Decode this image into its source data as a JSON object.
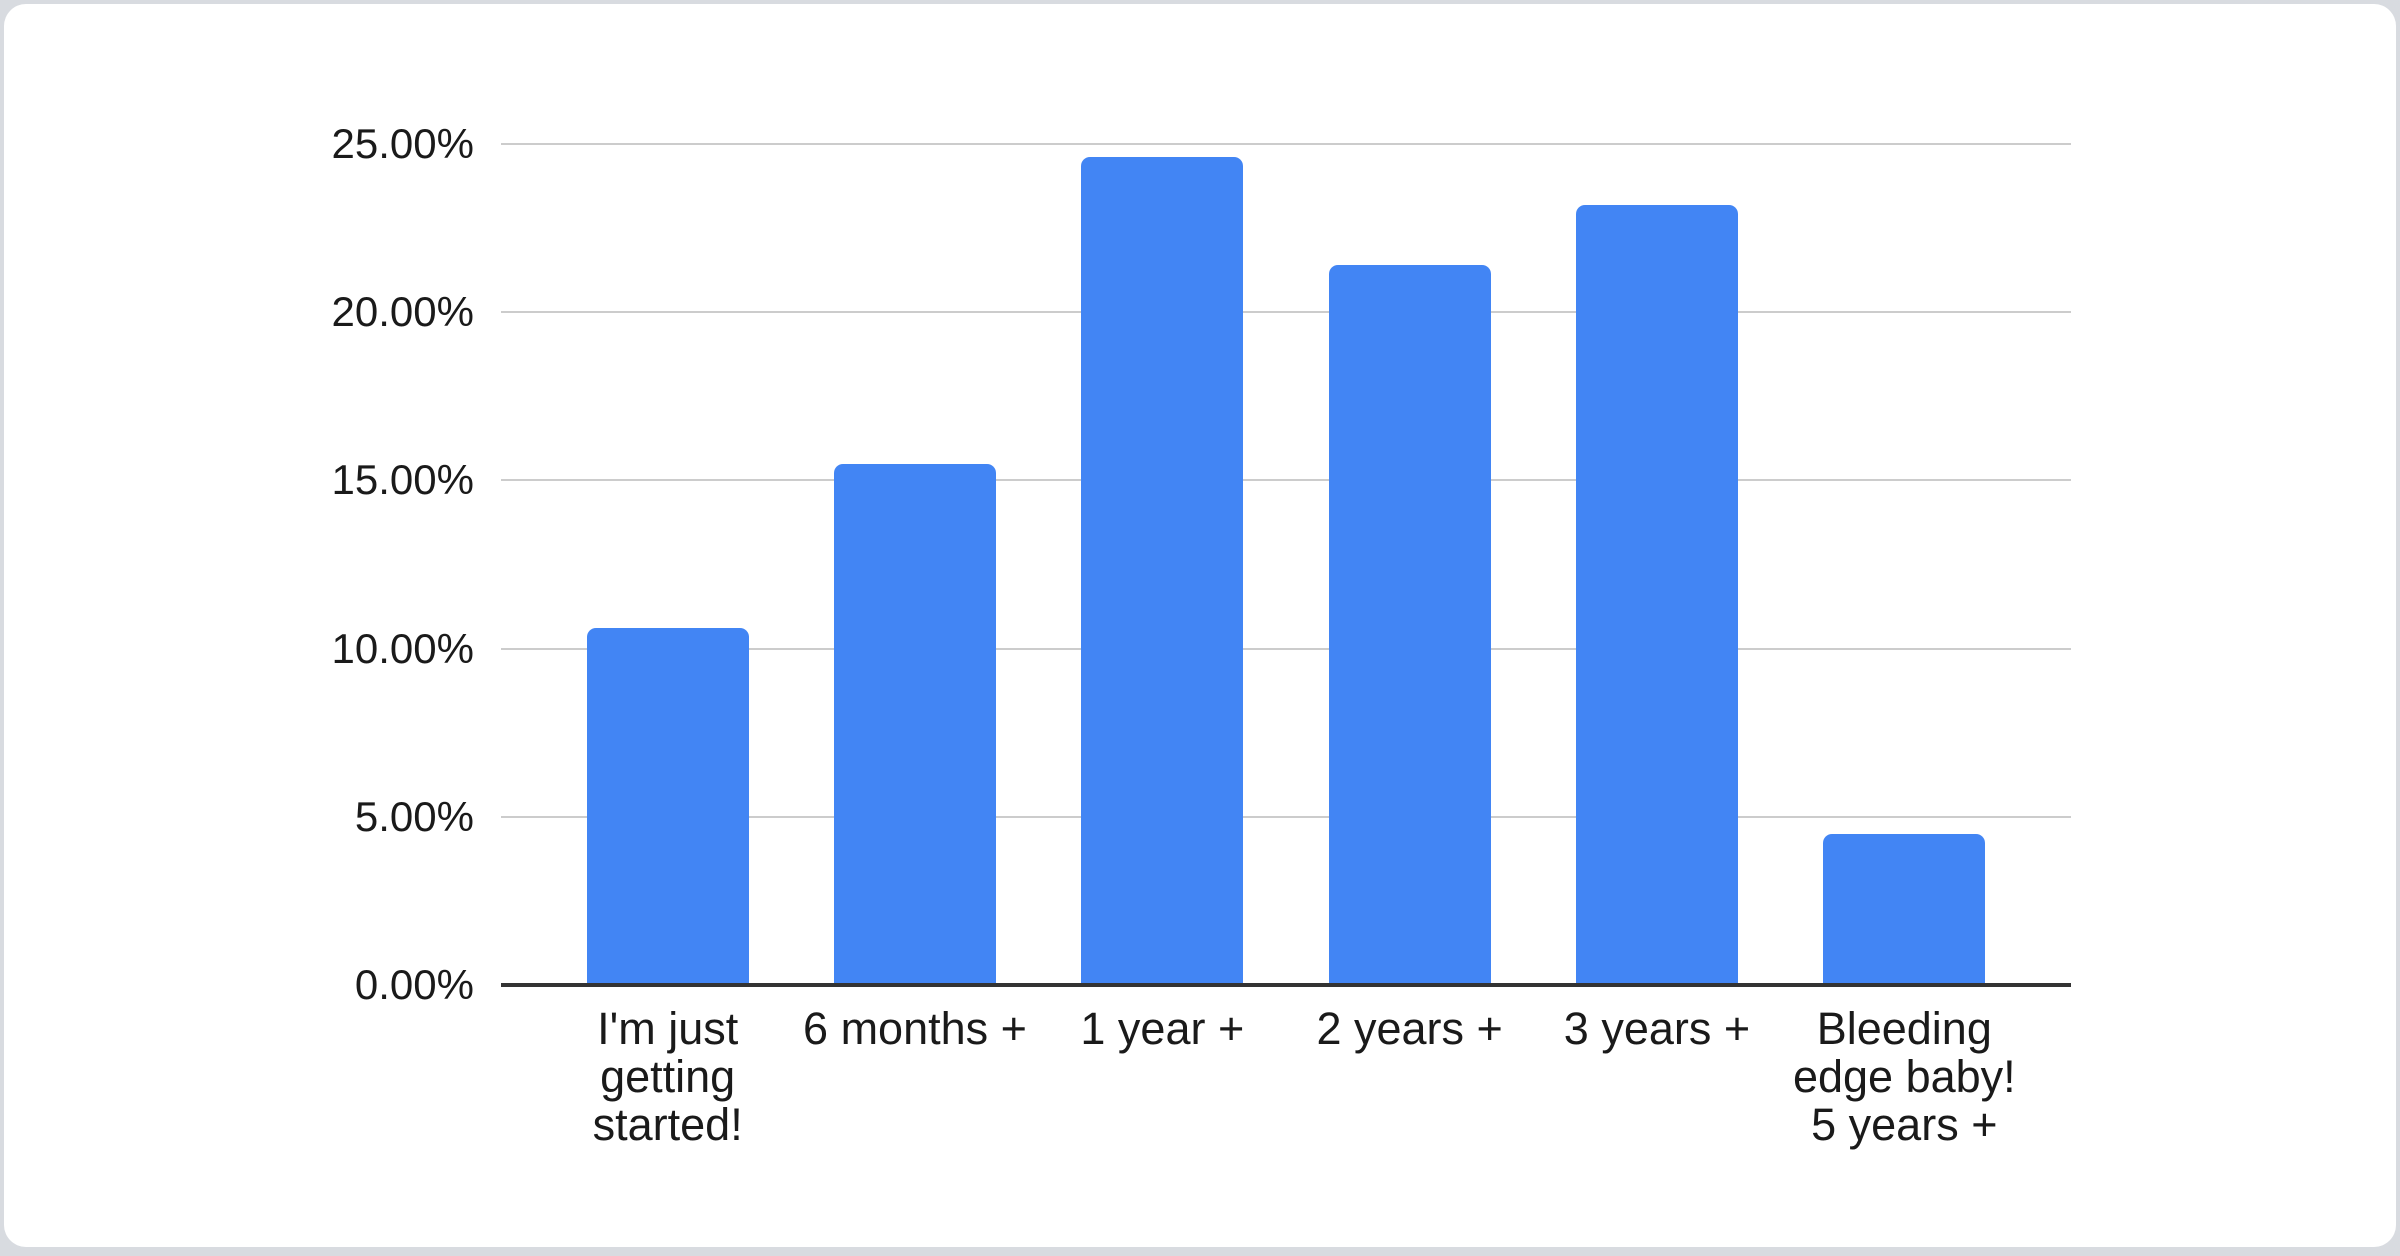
{
  "page": {
    "background_color": "#d8dbe0",
    "card_background_color": "#ffffff"
  },
  "chart_data": {
    "type": "bar",
    "title": "",
    "xlabel": "",
    "ylabel": "",
    "legend": "none",
    "grid": true,
    "ylim": [
      0,
      25
    ],
    "y_tick_interval": 5,
    "y_tick_labels": [
      "0.00%",
      "5.00%",
      "10.00%",
      "15.00%",
      "20.00%",
      "25.00%"
    ],
    "categories": [
      {
        "label": "I'm just getting started!",
        "lines": [
          "I'm just",
          "getting",
          "started!"
        ]
      },
      {
        "label": "6 months +",
        "lines": [
          "6 months +"
        ]
      },
      {
        "label": "1 year +",
        "lines": [
          "1 year +"
        ]
      },
      {
        "label": "2 years +",
        "lines": [
          "2 years +"
        ]
      },
      {
        "label": "3 years +",
        "lines": [
          "3 years +"
        ]
      },
      {
        "label": "Bleeding edge baby! 5 years +",
        "lines": [
          "Bleeding",
          "edge baby!",
          "5 years +"
        ]
      }
    ],
    "values": [
      10.6,
      15.5,
      24.6,
      21.4,
      23.2,
      4.5
    ],
    "value_unit": "%",
    "bar_color": "#4285f4",
    "grid_color": "#cccccc",
    "axis_color": "#333333",
    "label_color": "#1a1a1a"
  }
}
